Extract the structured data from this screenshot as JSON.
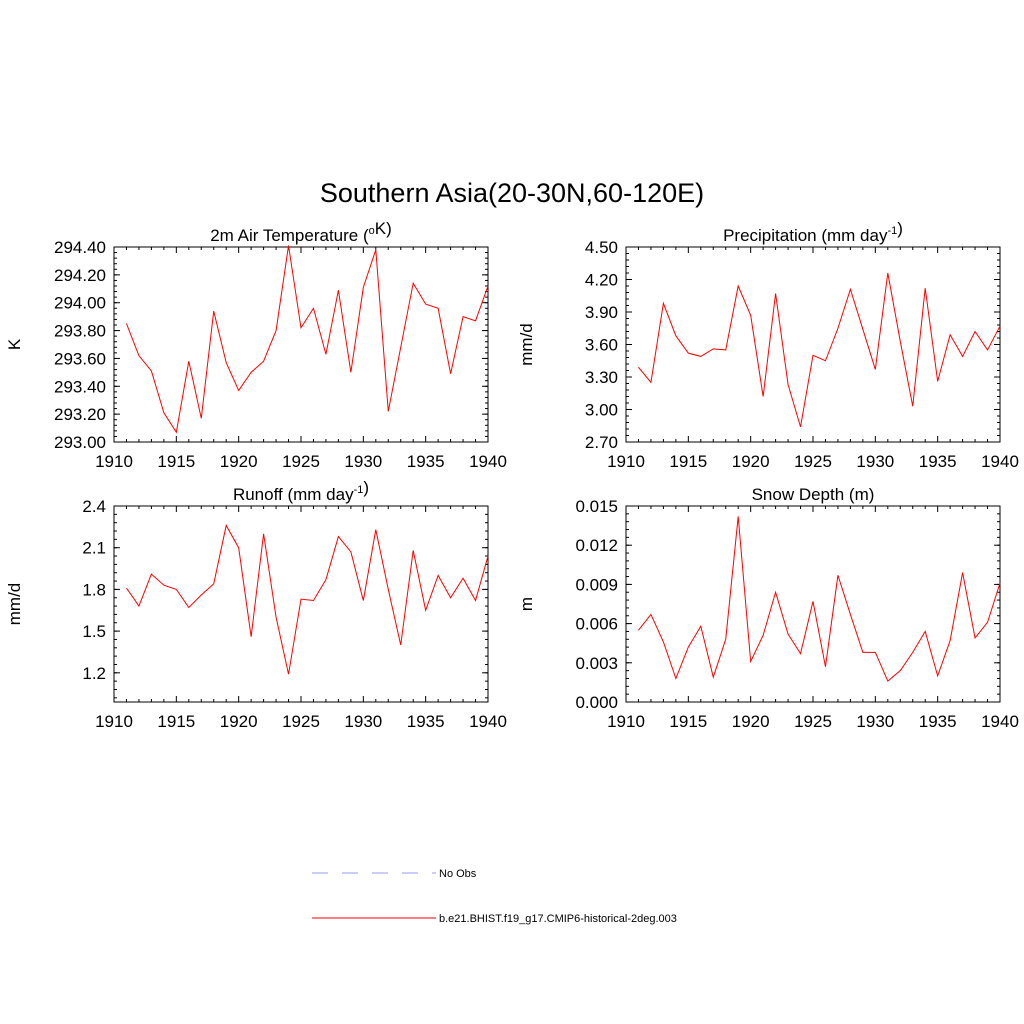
{
  "figure": {
    "title": "Southern Asia(20-30N,60-120E)"
  },
  "colors": {
    "model_line": "#ff0000",
    "obs_line": "#9999ff",
    "axis": "#000000",
    "background": "#ffffff"
  },
  "legend": {
    "placement": "bottom-center",
    "entries": [
      {
        "label": "No Obs",
        "style": "dashed",
        "color": "#9999ff"
      },
      {
        "label": "b.e21.BHIST.f19_g17.CMIP6-historical-2deg.003",
        "style": "solid",
        "color": "#ff0000"
      }
    ]
  },
  "chart_data": [
    {
      "type": "line",
      "title_main": "2m Air Temperature (",
      "title_sup_pre": "o",
      "title_after": "K)",
      "title_sup_post": "",
      "title_end": "",
      "ylabel": "K",
      "xlim": [
        1910,
        1940
      ],
      "ylim": [
        293.0,
        294.4
      ],
      "xticks": [
        1910,
        1915,
        1920,
        1925,
        1930,
        1935,
        1940
      ],
      "yticks": [
        "293.00",
        "293.20",
        "293.40",
        "293.60",
        "293.80",
        "294.00",
        "294.20",
        "294.40"
      ],
      "series": [
        {
          "color": "#ff0000",
          "x": [
            1911,
            1912,
            1913,
            1914,
            1915,
            1916,
            1917,
            1918,
            1919,
            1920,
            1921,
            1922,
            1923,
            1924,
            1925,
            1926,
            1927,
            1928,
            1929,
            1930,
            1931,
            1932,
            1933,
            1934,
            1935,
            1936,
            1937,
            1938,
            1939,
            1940
          ],
          "y": [
            293.85,
            293.62,
            293.51,
            293.21,
            293.07,
            293.58,
            293.17,
            293.94,
            293.57,
            293.37,
            293.5,
            293.58,
            293.8,
            294.41,
            293.82,
            293.96,
            293.63,
            294.09,
            293.5,
            294.11,
            294.38,
            293.22,
            293.68,
            294.14,
            293.99,
            293.96,
            293.49,
            293.9,
            293.87,
            294.12
          ]
        }
      ]
    },
    {
      "type": "line",
      "title_main": "Precipitation (mm day",
      "title_sup_pre": "",
      "title_after": "",
      "title_sup_post": "-1",
      "title_end": ")",
      "ylabel": "mm/d",
      "xlim": [
        1910,
        1940
      ],
      "ylim": [
        2.7,
        4.5
      ],
      "xticks": [
        1910,
        1915,
        1920,
        1925,
        1930,
        1935,
        1940
      ],
      "yticks": [
        "2.70",
        "3.00",
        "3.30",
        "3.60",
        "3.90",
        "4.20",
        "4.50"
      ],
      "series": [
        {
          "color": "#ff0000",
          "x": [
            1911,
            1912,
            1913,
            1914,
            1915,
            1916,
            1917,
            1918,
            1919,
            1920,
            1921,
            1922,
            1923,
            1924,
            1925,
            1926,
            1927,
            1928,
            1929,
            1930,
            1931,
            1932,
            1933,
            1934,
            1935,
            1936,
            1937,
            1938,
            1939,
            1940
          ],
          "y": [
            3.39,
            3.25,
            3.98,
            3.68,
            3.52,
            3.49,
            3.56,
            3.55,
            4.14,
            3.87,
            3.12,
            4.07,
            3.23,
            2.84,
            3.5,
            3.45,
            3.75,
            4.11,
            3.74,
            3.37,
            4.26,
            3.63,
            3.03,
            4.12,
            3.26,
            3.69,
            3.49,
            3.72,
            3.55,
            3.77
          ]
        }
      ]
    },
    {
      "type": "line",
      "title_main": "Runoff (mm day",
      "title_sup_pre": "",
      "title_after": "",
      "title_sup_post": "-1",
      "title_end": ")",
      "ylabel": "mm/d",
      "xlim": [
        1910,
        1940
      ],
      "ylim": [
        0.99,
        2.4
      ],
      "xticks": [
        1910,
        1915,
        1920,
        1925,
        1930,
        1935,
        1940
      ],
      "yticks": [
        "1.2",
        "1.5",
        "1.8",
        "2.1",
        "2.4"
      ],
      "series": [
        {
          "color": "#ff0000",
          "x": [
            1911,
            1912,
            1913,
            1914,
            1915,
            1916,
            1917,
            1918,
            1919,
            1920,
            1921,
            1922,
            1923,
            1924,
            1925,
            1926,
            1927,
            1928,
            1929,
            1930,
            1931,
            1932,
            1933,
            1934,
            1935,
            1936,
            1937,
            1938,
            1939,
            1940
          ],
          "y": [
            1.81,
            1.68,
            1.91,
            1.83,
            1.8,
            1.67,
            1.76,
            1.84,
            2.26,
            2.1,
            1.46,
            2.2,
            1.6,
            1.19,
            1.73,
            1.72,
            1.87,
            2.18,
            2.07,
            1.72,
            2.23,
            1.8,
            1.4,
            2.08,
            1.65,
            1.9,
            1.74,
            1.88,
            1.72,
            2.04
          ]
        }
      ]
    },
    {
      "type": "line",
      "title_main": "Snow Depth (m)",
      "title_sup_pre": "",
      "title_after": "",
      "title_sup_post": "",
      "title_end": "",
      "ylabel": "m",
      "xlim": [
        1910,
        1940
      ],
      "ylim": [
        0.0,
        0.015
      ],
      "xticks": [
        1910,
        1915,
        1920,
        1925,
        1930,
        1935,
        1940
      ],
      "yticks": [
        "0.000",
        "0.003",
        "0.006",
        "0.009",
        "0.012",
        "0.015"
      ],
      "series": [
        {
          "color": "#ff0000",
          "x": [
            1911,
            1912,
            1913,
            1914,
            1915,
            1916,
            1917,
            1918,
            1919,
            1920,
            1921,
            1922,
            1923,
            1924,
            1925,
            1926,
            1927,
            1928,
            1929,
            1930,
            1931,
            1932,
            1933,
            1934,
            1935,
            1936,
            1937,
            1938,
            1939,
            1940
          ],
          "y": [
            0.0055,
            0.0067,
            0.0046,
            0.0018,
            0.0042,
            0.0058,
            0.0019,
            0.0048,
            0.0142,
            0.0031,
            0.0051,
            0.0084,
            0.0052,
            0.0037,
            0.0077,
            0.0027,
            0.0097,
            0.0067,
            0.0038,
            0.0038,
            0.0016,
            0.0024,
            0.0038,
            0.0054,
            0.002,
            0.0047,
            0.0099,
            0.0049,
            0.0061,
            0.0091
          ]
        }
      ]
    }
  ]
}
